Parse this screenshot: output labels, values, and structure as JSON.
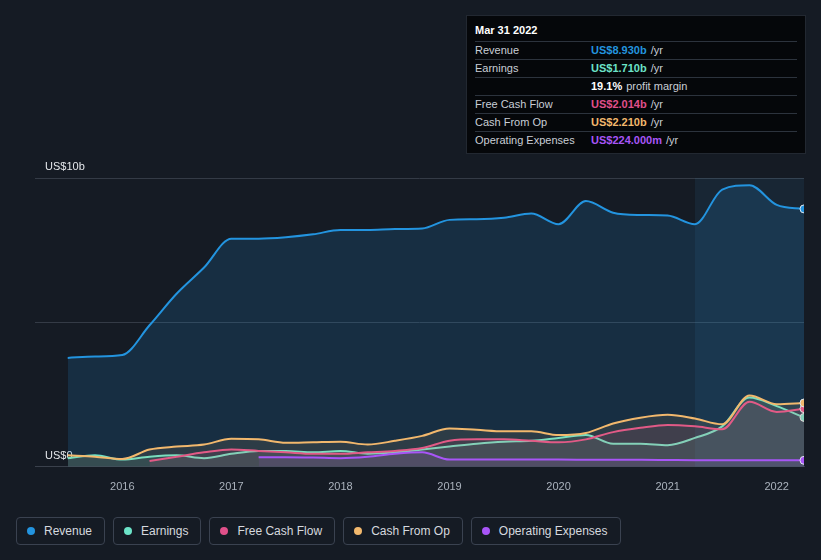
{
  "chart_data": {
    "type": "line",
    "x": [
      2015.5,
      2015.75,
      2016,
      2016.25,
      2016.5,
      2016.75,
      2017,
      2017.25,
      2017.5,
      2017.75,
      2018,
      2018.25,
      2018.5,
      2018.75,
      2019,
      2019.25,
      2019.5,
      2019.75,
      2020,
      2020.25,
      2020.5,
      2020.75,
      2021,
      2021.25,
      2021.5,
      2021.75,
      2022,
      2022.25
    ],
    "series": [
      {
        "name": "Revenue",
        "color": "#2394df",
        "values": [
          3.77,
          3.82,
          3.87,
          4.9,
          6.0,
          6.9,
          7.9,
          7.9,
          7.95,
          8.05,
          8.2,
          8.2,
          8.23,
          8.25,
          8.55,
          8.57,
          8.62,
          8.77,
          8.4,
          9.2,
          8.8,
          8.72,
          8.7,
          8.4,
          9.6,
          9.75,
          9.07,
          8.93
        ]
      },
      {
        "name": "Earnings",
        "color": "#6ce3c8",
        "values": [
          0.3,
          0.4,
          0.25,
          0.35,
          0.4,
          0.3,
          0.45,
          0.55,
          0.55,
          0.5,
          0.55,
          0.45,
          0.5,
          0.6,
          0.7,
          0.8,
          0.87,
          0.9,
          1.0,
          1.1,
          0.8,
          0.8,
          0.75,
          1.0,
          1.4,
          2.4,
          2.1,
          1.71
        ]
      },
      {
        "name": "Free Cash Flow",
        "color": "#e0508a",
        "values": [
          null,
          null,
          null,
          0.2,
          0.35,
          0.5,
          0.6,
          0.55,
          0.5,
          0.45,
          0.45,
          0.5,
          0.55,
          0.65,
          0.9,
          0.95,
          0.95,
          0.9,
          0.85,
          0.95,
          1.2,
          1.35,
          1.45,
          1.4,
          1.3,
          2.25,
          1.9,
          2.014
        ]
      },
      {
        "name": "Cash From Op",
        "color": "#f2b86d",
        "values": [
          0.4,
          0.35,
          0.27,
          0.6,
          0.7,
          0.77,
          0.97,
          0.95,
          0.83,
          0.85,
          0.87,
          0.77,
          0.9,
          1.07,
          1.33,
          1.28,
          1.23,
          1.23,
          1.1,
          1.17,
          1.5,
          1.7,
          1.8,
          1.67,
          1.47,
          2.47,
          2.17,
          2.21
        ]
      },
      {
        "name": "Operating Expenses",
        "color": "#a855f7",
        "values": [
          null,
          null,
          null,
          null,
          null,
          null,
          null,
          0.33,
          0.33,
          0.32,
          0.3,
          0.35,
          0.45,
          0.5,
          0.25,
          0.25,
          0.25,
          0.25,
          0.25,
          0.245,
          0.24,
          0.24,
          0.235,
          0.23,
          0.23,
          0.228,
          0.226,
          0.224
        ]
      }
    ],
    "xlim": [
      2015.2,
      2022.25
    ],
    "xticks": [
      2016,
      2017,
      2018,
      2019,
      2020,
      2021,
      2022
    ],
    "ylim": [
      0,
      10
    ],
    "yticks": [
      {
        "value": 0,
        "label": "US$0"
      },
      {
        "value": 5,
        "label": null
      },
      {
        "value": 10,
        "label": "US$10b"
      }
    ],
    "grid": true,
    "legend": "bottom",
    "annotations": {
      "tooltip": {
        "title": "Mar 31 2022",
        "rows": [
          {
            "label": "Revenue",
            "value": "US$8.930b",
            "suffix": "/yr",
            "color": "#2394df"
          },
          {
            "label": "Earnings",
            "value": "US$1.710b",
            "suffix": "/yr",
            "color": "#6ce3c8"
          },
          {
            "label": null,
            "value": "19.1%",
            "suffix": "profit margin",
            "color": "#ffffff"
          },
          {
            "label": "Free Cash Flow",
            "value": "US$2.014b",
            "suffix": "/yr",
            "color": "#e0508a"
          },
          {
            "label": "Cash From Op",
            "value": "US$2.210b",
            "suffix": "/yr",
            "color": "#f2b86d"
          },
          {
            "label": "Operating Expenses",
            "value": "US$224.000m",
            "suffix": "/yr",
            "color": "#a855f7"
          }
        ]
      }
    }
  }
}
